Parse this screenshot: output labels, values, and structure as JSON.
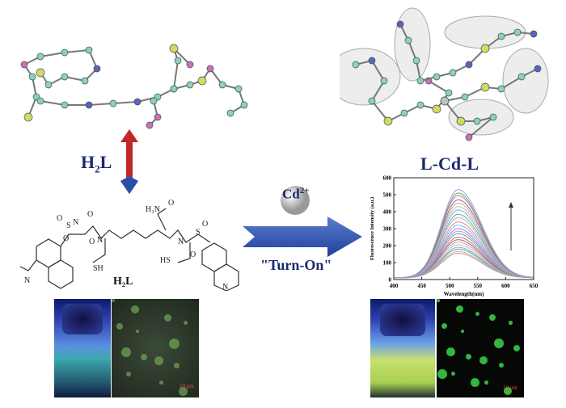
{
  "labels": {
    "ligand_top": "H2L",
    "ligand_structure": "H2L",
    "complex": "L-Cd-L",
    "ion": "Cd",
    "ion_charge": "2+",
    "turn_on": "\"Turn-On\"",
    "scale_left": "10 μm",
    "scale_right": "10 μm"
  },
  "structure_text": [
    "H2N",
    "O",
    "O",
    "O",
    "H",
    "N",
    "N",
    "H",
    "N",
    "H",
    "O",
    "S",
    "O",
    "SH",
    "HS",
    "N",
    "O",
    "S",
    "O",
    "N",
    "H",
    "N",
    "N"
  ],
  "colors": {
    "title": "#1a2a6c",
    "arrow_blue": "#2a4fa8",
    "arrow_red": "#c0282a"
  },
  "chart_data": {
    "type": "line",
    "xlabel": "Wavelength(nm)",
    "ylabel": "Fluorescence Intensity (a.u.)",
    "xlim": [
      400,
      650
    ],
    "ylim": [
      0,
      600
    ],
    "xticks": [
      400,
      450,
      500,
      550,
      600,
      650
    ],
    "yticks": [
      0,
      100,
      200,
      300,
      400,
      500,
      600
    ],
    "peak_wavelength": 515,
    "peak_intensities": [
      155,
      165,
      180,
      190,
      205,
      220,
      235,
      250,
      270,
      285,
      300,
      320,
      340,
      365,
      385,
      410,
      430,
      450,
      470,
      495,
      510,
      530
    ],
    "annotation": "arrow-up"
  }
}
